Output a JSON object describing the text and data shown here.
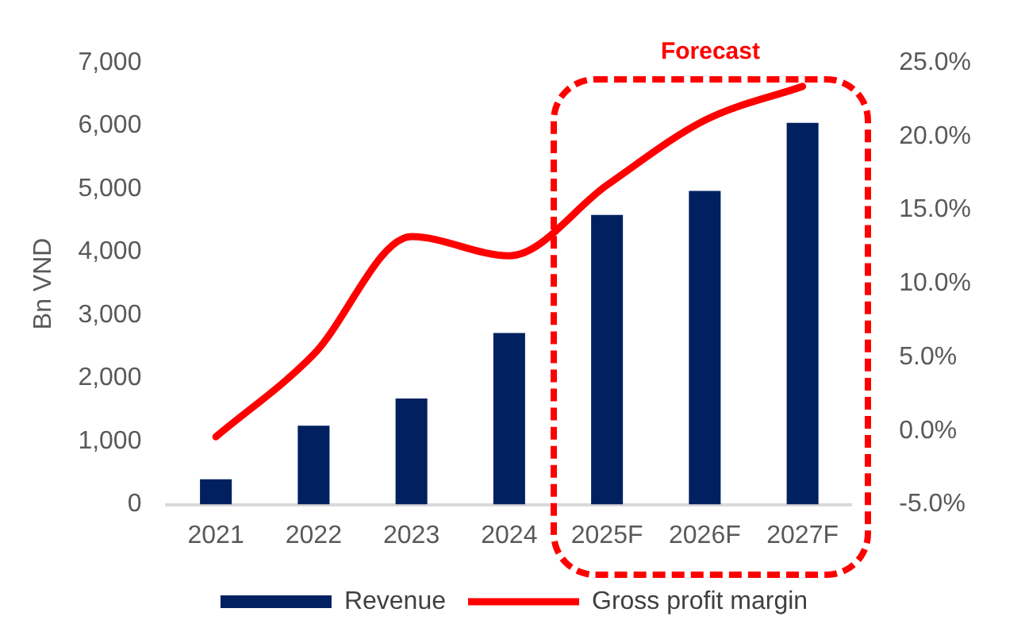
{
  "chart_data": {
    "type": "bar",
    "ylabel": "Bn VND",
    "categories": [
      "2021",
      "2022",
      "2023",
      "2024",
      "2025F",
      "2026F",
      "2027F"
    ],
    "series": [
      {
        "name": "Revenue",
        "color": "#002060",
        "values": [
          400,
          1250,
          1680,
          2720,
          4590,
          4970,
          6050
        ]
      },
      {
        "name": "Gross profit margin",
        "type": "line",
        "axis": "y2",
        "color": "#ff0000",
        "values": [
          -0.4,
          5.2,
          13.2,
          11.9,
          16.7,
          21.1,
          23.4
        ]
      }
    ],
    "ylim": [
      0,
      7000
    ],
    "yticks": [
      {
        "value": 0,
        "label": "0"
      },
      {
        "value": 1000,
        "label": "1,000"
      },
      {
        "value": 2000,
        "label": "2,000"
      },
      {
        "value": 3000,
        "label": "3,000"
      },
      {
        "value": 4000,
        "label": "4,000"
      },
      {
        "value": 5000,
        "label": "5,000"
      },
      {
        "value": 6000,
        "label": "6,000"
      },
      {
        "value": 7000,
        "label": "7,000"
      }
    ],
    "y2lim": [
      -5,
      25
    ],
    "y2ticks": [
      {
        "value": -5,
        "label": "-5.0%"
      },
      {
        "value": 0,
        "label": "0.0%"
      },
      {
        "value": 5,
        "label": "5.0%"
      },
      {
        "value": 10,
        "label": "10.0%"
      },
      {
        "value": 15,
        "label": "15.0%"
      },
      {
        "value": 20,
        "label": "20.0%"
      },
      {
        "value": 25,
        "label": "25.0%"
      }
    ],
    "annotations": [
      "Forecast"
    ],
    "grid": false,
    "legend": "bottom",
    "marker": "none",
    "line_style": "solid"
  }
}
